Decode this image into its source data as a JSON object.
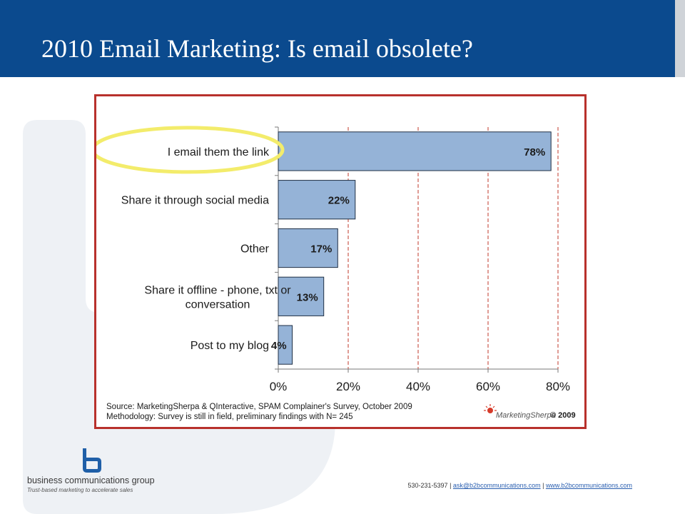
{
  "slide": {
    "title": "2010 Email Marketing: Is email obsolete?"
  },
  "chart_data": {
    "type": "bar",
    "orientation": "horizontal",
    "categories": [
      "I email them the link",
      "Share it through social media",
      "Other",
      "Share it offline - phone, txt or conversation",
      "Post to my blog"
    ],
    "category_lines": [
      [
        "I email them the link"
      ],
      [
        "Share it through social media"
      ],
      [
        "Other"
      ],
      [
        "Share it offline - phone, txt or",
        "conversation"
      ],
      [
        "Post to my blog"
      ]
    ],
    "values": [
      78,
      22,
      17,
      13,
      4
    ],
    "data_labels": [
      "78%",
      "22%",
      "17%",
      "13%",
      "4%"
    ],
    "xlim": [
      0,
      80
    ],
    "x_ticks": [
      0,
      20,
      40,
      60,
      80
    ],
    "x_tick_labels": [
      "0%",
      "20%",
      "40%",
      "60%",
      "80%"
    ],
    "grid": "vertical dashed red",
    "bar_color": "#95b3d7",
    "bar_edge_color": "#1f2f44",
    "highlight": "I email them the link",
    "highlight_color": "#f3ec6b",
    "source_lines": [
      "Source: MarketingSherpa & QInteractive, SPAM Complainer's Survey, October 2009",
      "Methodology: Survey is still in field, preliminary findings with N= 245"
    ],
    "credit": {
      "brand": "MarketingSherpa",
      "copyright": "© 2009"
    }
  },
  "footer": {
    "company": "business communications group",
    "tagline": "Trust-based marketing to accelerate sales",
    "phone": "530-231-5397",
    "separator": " | ",
    "email": "ask@b2bcommunications.com",
    "website": "www.b2bcommunications.com"
  },
  "colors": {
    "header": "#0b4a8e",
    "chart_border": "#b8312c",
    "grid": "#c0392b",
    "link": "#2a5fb0"
  }
}
